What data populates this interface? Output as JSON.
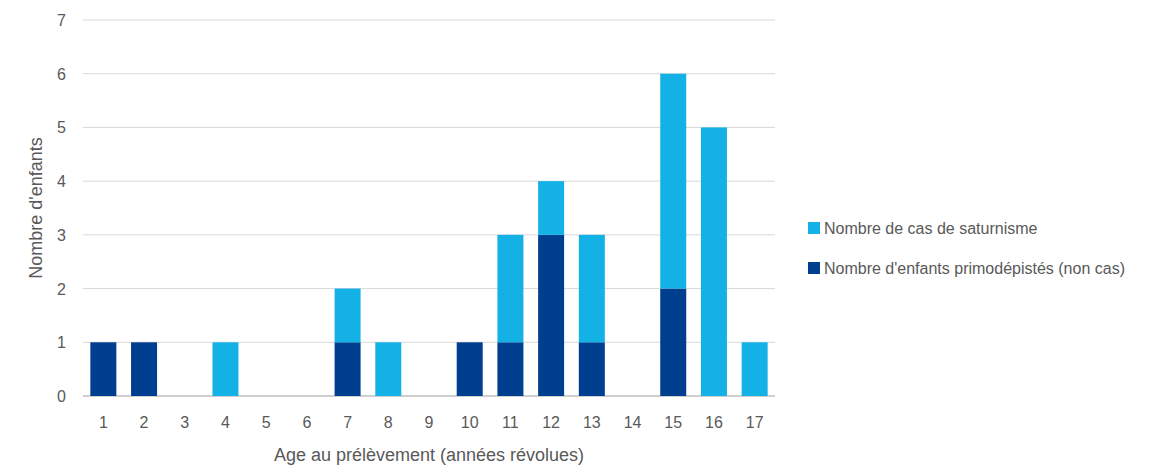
{
  "chart_data": {
    "type": "bar",
    "stacked": true,
    "grid": true,
    "legend": "right",
    "x_label": "Age au prélèvement (années révolues)",
    "y_label": "Nombre d'enfants",
    "categories": [
      "1",
      "2",
      "3",
      "4",
      "5",
      "6",
      "7",
      "8",
      "9",
      "10",
      "11",
      "12",
      "13",
      "14",
      "15",
      "16",
      "17"
    ],
    "series": [
      {
        "name": "Nombre d'enfants primodépistés (non cas)",
        "color": "#003e8f",
        "values": [
          1,
          1,
          0,
          0,
          0,
          0,
          1,
          0,
          0,
          1,
          1,
          3,
          1,
          0,
          2,
          0,
          0
        ]
      },
      {
        "name": "Nombre de cas de saturnisme",
        "color": "#14b1e7",
        "values": [
          0,
          0,
          0,
          1,
          0,
          0,
          1,
          1,
          0,
          0,
          2,
          1,
          2,
          0,
          4,
          5,
          1
        ]
      }
    ],
    "ylim": [
      0,
      7
    ],
    "yticks": [
      0,
      1,
      2,
      3,
      4,
      5,
      6,
      7
    ]
  }
}
